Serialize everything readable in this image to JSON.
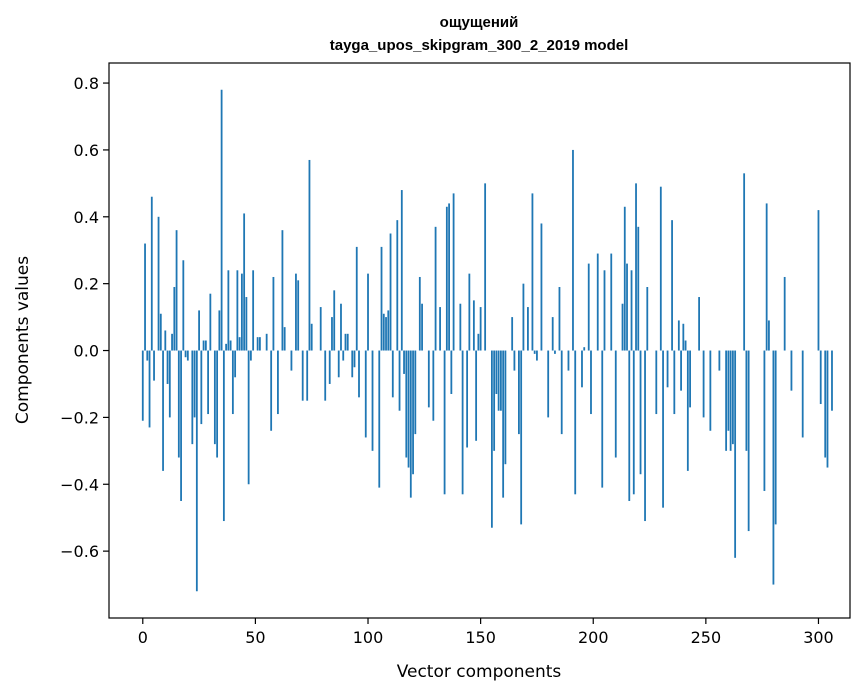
{
  "chart_data": {
    "type": "bar",
    "title": "ощущений",
    "subtitle": "tayga_upos_skipgram_300_2_2019 model",
    "xlabel": "Vector components",
    "ylabel": "Components values",
    "xlim": [
      -15,
      314
    ],
    "ylim": [
      -0.8,
      0.86
    ],
    "xticks": [
      0,
      50,
      100,
      150,
      200,
      250,
      300
    ],
    "yticks": [
      -0.6,
      -0.4,
      -0.2,
      0.0,
      0.2,
      0.4,
      0.6,
      0.8
    ],
    "ytick_labels": [
      "−0.6",
      "−0.4",
      "−0.2",
      "0.0",
      "0.2",
      "0.4",
      "0.6",
      "0.8"
    ],
    "grid": false,
    "bar_color": "#1f77b4",
    "values": [
      -0.21,
      0.32,
      -0.03,
      -0.23,
      0.46,
      -0.09,
      0.0,
      0.4,
      0.11,
      -0.36,
      0.06,
      -0.1,
      -0.2,
      0.05,
      0.19,
      0.36,
      -0.32,
      -0.45,
      0.27,
      -0.02,
      -0.03,
      0.0,
      -0.28,
      -0.2,
      -0.72,
      0.12,
      -0.22,
      0.03,
      0.03,
      -0.19,
      0.17,
      0.0,
      -0.28,
      -0.32,
      0.12,
      0.78,
      -0.51,
      0.02,
      0.24,
      0.03,
      -0.19,
      -0.08,
      0.24,
      0.04,
      0.23,
      0.41,
      0.16,
      -0.4,
      -0.03,
      0.24,
      0.0,
      0.04,
      0.04,
      0.0,
      0.0,
      0.05,
      0.0,
      -0.24,
      0.22,
      0.0,
      -0.19,
      0.0,
      0.36,
      0.07,
      0.0,
      0.0,
      -0.06,
      0.0,
      0.23,
      0.21,
      0.0,
      -0.15,
      0.0,
      -0.15,
      0.57,
      0.08,
      0.0,
      0.0,
      0.0,
      0.13,
      0.0,
      -0.15,
      0.0,
      -0.1,
      0.1,
      0.18,
      0.0,
      -0.08,
      0.14,
      -0.03,
      0.05,
      0.05,
      0.0,
      -0.08,
      -0.05,
      0.31,
      -0.14,
      0.0,
      0.0,
      -0.26,
      0.23,
      0.0,
      -0.3,
      0.0,
      0.0,
      -0.41,
      0.31,
      0.11,
      0.1,
      0.12,
      0.35,
      -0.14,
      0.0,
      0.39,
      -0.18,
      0.48,
      -0.07,
      -0.32,
      -0.35,
      -0.44,
      -0.37,
      -0.25,
      0.0,
      0.22,
      0.14,
      0.0,
      0.0,
      -0.17,
      0.0,
      -0.21,
      0.37,
      0.0,
      0.13,
      0.0,
      -0.43,
      0.43,
      0.44,
      -0.13,
      0.47,
      0.0,
      0.0,
      0.14,
      -0.43,
      0.0,
      -0.29,
      0.23,
      0.0,
      0.15,
      -0.27,
      0.05,
      0.13,
      0.0,
      0.5,
      0.0,
      0.0,
      -0.53,
      -0.3,
      -0.13,
      -0.18,
      -0.18,
      -0.44,
      -0.34,
      0.0,
      0.0,
      0.1,
      -0.06,
      0.0,
      -0.25,
      -0.52,
      0.2,
      0.0,
      0.13,
      0.0,
      0.47,
      -0.01,
      -0.03,
      0.0,
      0.38,
      0.0,
      0.0,
      -0.2,
      0.0,
      0.1,
      -0.01,
      0.0,
      0.19,
      -0.25,
      0.0,
      0.0,
      -0.06,
      0.0,
      0.6,
      -0.43,
      0.0,
      0.0,
      -0.11,
      0.01,
      0.0,
      0.26,
      -0.19,
      0.0,
      0.0,
      0.29,
      0.0,
      -0.41,
      0.24,
      0.0,
      0.0,
      0.29,
      0.0,
      -0.32,
      0.0,
      0.0,
      0.14,
      0.43,
      0.26,
      -0.45,
      0.24,
      -0.43,
      0.5,
      0.37,
      -0.37,
      0.0,
      -0.51,
      0.19,
      0.0,
      0.0,
      0.0,
      -0.19,
      0.0,
      0.49,
      -0.47,
      0.0,
      -0.11,
      0.0,
      0.39,
      -0.19,
      0.0,
      0.09,
      -0.12,
      0.08,
      0.03,
      -0.36,
      -0.17,
      0.0,
      0.0,
      0.0,
      0.16,
      0.0,
      -0.2,
      0.0,
      0.0,
      -0.24,
      0.0,
      0.0,
      0.0,
      -0.06,
      0.0,
      0.0,
      -0.3,
      -0.24,
      -0.3,
      -0.28,
      -0.62,
      0.0,
      0.0,
      0.0,
      0.53,
      -0.3,
      -0.54,
      0.0,
      0.0,
      0.0,
      0.0,
      0.0,
      0.0,
      -0.42,
      0.44,
      0.09,
      0.0,
      -0.7,
      -0.52,
      0.0,
      0.0,
      0.0,
      0.22,
      0.0,
      0.0,
      -0.12,
      0.0,
      0.0,
      0.0,
      0.0,
      -0.26,
      0.0,
      0.0,
      0.0,
      0.0,
      0.0,
      0.0,
      0.42,
      -0.16,
      0.0,
      -0.32,
      -0.35,
      0.0,
      -0.18
    ]
  }
}
